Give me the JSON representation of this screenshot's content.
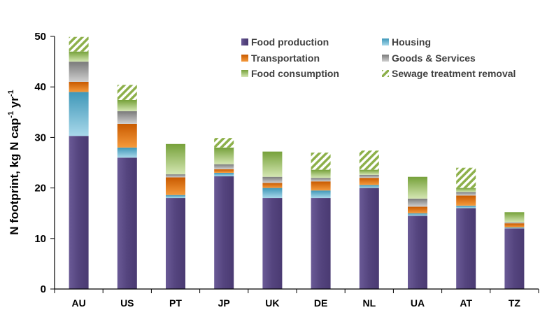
{
  "chart_data": {
    "type": "bar",
    "stacked": true,
    "ylabel": {
      "main": "N footprint, kg N cap",
      "sup1": "-1",
      "mid": " yr",
      "sup2": "-1"
    },
    "ylim": [
      0,
      50
    ],
    "yticks": [
      "0",
      "10",
      "20",
      "30",
      "40",
      "50"
    ],
    "ytick_values": [
      0,
      10,
      20,
      30,
      40,
      50
    ],
    "grid": false,
    "legend_position": "top-right",
    "categories": [
      "AU",
      "US",
      "PT",
      "JP",
      "UK",
      "DE",
      "NL",
      "UA",
      "AT",
      "TZ"
    ],
    "series": [
      {
        "name": "Food production",
        "color": "#5b4a86",
        "values": [
          30.3,
          26.0,
          18.0,
          22.3,
          18.0,
          18.0,
          20.0,
          14.5,
          16.0,
          12.0
        ]
      },
      {
        "name": "Housing",
        "color": "#4ba3c3",
        "values": [
          8.7,
          2.0,
          0.6,
          0.7,
          2.0,
          1.5,
          0.6,
          0.5,
          0.5,
          0.2
        ]
      },
      {
        "name": "Transportation",
        "color": "#e36c09",
        "values": [
          2.0,
          4.7,
          3.5,
          0.7,
          1.0,
          1.8,
          1.4,
          1.3,
          2.0,
          0.8
        ]
      },
      {
        "name": "Goods & Services",
        "color": "#8c8c8c",
        "values": [
          4.0,
          2.5,
          0.6,
          1.0,
          1.2,
          0.7,
          0.6,
          1.6,
          0.7,
          0.2
        ]
      },
      {
        "name": "Food consumption",
        "color": "#8db04a",
        "values": [
          2.0,
          2.2,
          6.0,
          3.3,
          5.0,
          1.6,
          1.0,
          4.3,
          0.8,
          2.0
        ]
      },
      {
        "name": "Sewage treatment removal",
        "color": "#8db04a",
        "pattern": "hatch",
        "values": [
          2.9,
          3.0,
          0.0,
          1.9,
          0.0,
          3.4,
          3.8,
          0.0,
          4.0,
          0.0
        ]
      }
    ]
  }
}
